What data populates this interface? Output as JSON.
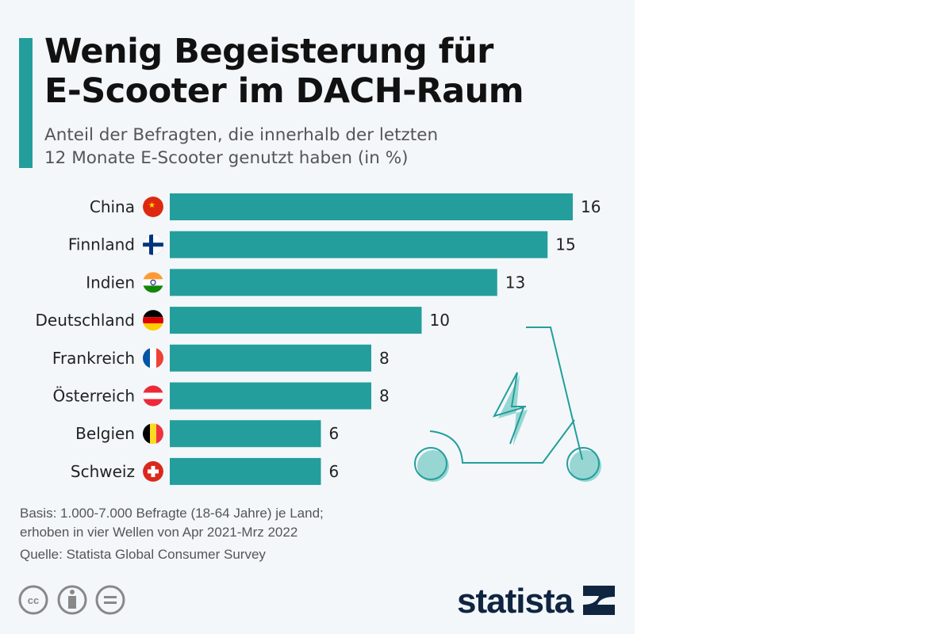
{
  "chart_data": {
    "type": "bar",
    "orientation": "horizontal",
    "title": "Wenig Begeisterung für E-Scooter im DACH-Raum",
    "subtitle": [
      "Anteil der Befragten, die innerhalb der letzten",
      "12 Monate E-Scooter genutzt haben (in %)"
    ],
    "categories": [
      "China",
      "Finnland",
      "Indien",
      "Deutschland",
      "Frankreich",
      "Österreich",
      "Belgien",
      "Schweiz"
    ],
    "values": [
      16,
      15,
      13,
      10,
      8,
      8,
      6,
      6
    ],
    "xlim": [
      0,
      16
    ],
    "bar_color": "#239e9c",
    "grid": false
  },
  "footer": {
    "basis_1": "Basis: 1.000-7.000 Befragte (18-64 Jahre) je Land;",
    "basis_2": "erhoben in vier Wellen von Apr 2021-Mrz 2022",
    "source": "Quelle: Statista Global Consumer Survey",
    "license_icons": [
      "cc-icon",
      "by-icon",
      "nd-icon"
    ],
    "logo": "statista"
  }
}
